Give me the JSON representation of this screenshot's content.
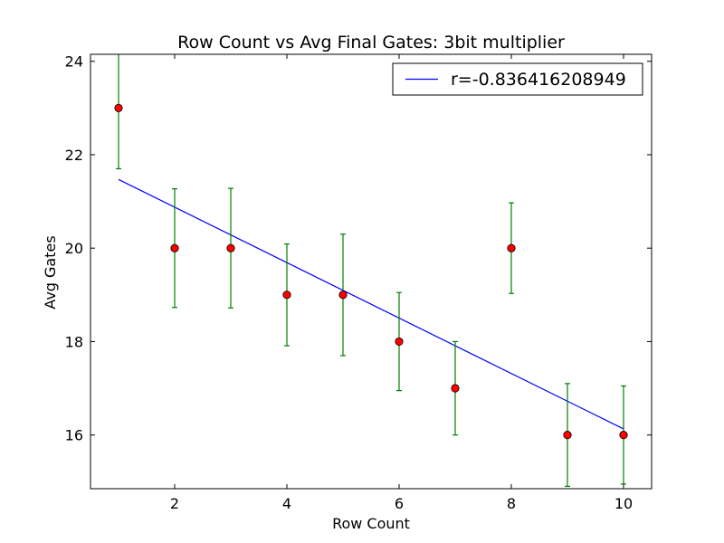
{
  "chart_data": {
    "type": "scatter",
    "title": "Row Count vs Avg Final Gates: 3bit multiplier",
    "xlabel": "Row Count",
    "ylabel": "Avg Gates",
    "xlim": [
      0.5,
      10.5
    ],
    "ylim": [
      14.85,
      24.15
    ],
    "xticks": [
      2,
      4,
      6,
      8,
      10
    ],
    "yticks": [
      16,
      18,
      20,
      22,
      24
    ],
    "grid": false,
    "legend_position": "top-right",
    "points": {
      "x": [
        1,
        2,
        3,
        4,
        5,
        6,
        7,
        8,
        9,
        10
      ],
      "y": [
        23,
        20,
        20,
        19,
        19,
        18,
        17,
        20,
        16,
        16
      ],
      "yerr": [
        1.3,
        1.27,
        1.28,
        1.09,
        1.3,
        1.05,
        1.0,
        0.97,
        1.1,
        1.05
      ],
      "marker_color": "#ff0000",
      "errorbar_color": "#008000"
    },
    "fit_line": {
      "name": "r=-0.836416208949",
      "x": [
        1,
        10
      ],
      "y": [
        21.47,
        16.13
      ],
      "color": "#0000ff"
    }
  }
}
